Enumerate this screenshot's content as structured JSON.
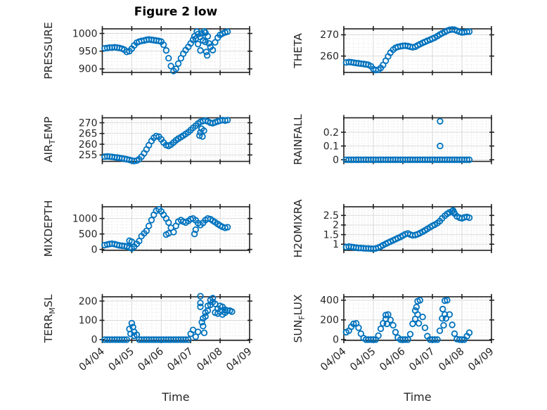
{
  "figure": {
    "title": "Figure 2 low",
    "xlabel": "Time"
  },
  "colors": {
    "marker": "#0072BD",
    "axis_box": "#212121",
    "tick_label": "#262626",
    "grid_major": "#d9d9d9",
    "grid_minor": "#e0e0e0",
    "title": "#000000",
    "background": "#ffffff"
  },
  "time_axis": {
    "xlim": [
      0,
      5
    ],
    "ticks": [
      0,
      1,
      2,
      3,
      4,
      5
    ],
    "tick_labels": [
      "04/04",
      "04/05",
      "04/06",
      "04/07",
      "04/08",
      "04/09"
    ],
    "minor_per_day": 6,
    "x_unit": "days since 04/04 00:00"
  },
  "chart_data": {
    "type": "scatter",
    "title": "Figure 2 low",
    "xlabel": "Time",
    "marker": "open-circle",
    "shared_x": [
      0.08,
      0.17,
      0.25,
      0.33,
      0.42,
      0.5,
      0.58,
      0.67,
      0.75,
      0.83,
      0.92,
      1,
      1.08,
      1.17,
      1.25,
      1.33,
      1.42,
      1.5,
      1.58,
      1.67,
      1.75,
      1.83,
      1.92,
      2,
      2.08,
      2.17,
      2.25,
      2.33,
      2.42,
      2.5,
      2.58,
      2.67,
      2.75,
      2.83,
      2.92,
      3,
      3.08,
      3.17,
      3.25,
      3.33,
      3.42,
      3.5,
      3.58,
      3.67,
      3.75,
      3.83,
      3.92,
      4,
      4.08,
      4.17,
      4.25
    ],
    "subplots": [
      {
        "id": "pressure",
        "ylabel": "PRESSURE",
        "ylabel_parts": [
          {
            "text": "PRESSURE",
            "sub": false
          }
        ],
        "ylim": [
          890,
          1013
        ],
        "yticks": [
          900,
          950,
          1000
        ],
        "ytick_labels": [
          "900",
          "950",
          "1000"
        ],
        "y": [
          958,
          959,
          960,
          960,
          961,
          960,
          959,
          957,
          954,
          948,
          950,
          957,
          966,
          974,
          977,
          979,
          980,
          982,
          983,
          982,
          981,
          980,
          979,
          977,
          968,
          952,
          930,
          908,
          894,
          900,
          915,
          930,
          943,
          953,
          962,
          972,
          982,
          985,
          970,
          952,
          980,
          1002,
          992,
          962,
          953,
          975,
          988,
          996,
          1000,
          1003,
          1005
        ],
        "extra_points": [
          [
            3.46,
            1006
          ],
          [
            3.5,
            976
          ],
          [
            3.53,
            948
          ],
          [
            3.56,
            938
          ],
          [
            3.33,
            990
          ],
          [
            3.37,
            1000
          ],
          [
            3.62,
            972
          ],
          [
            3.13,
            992
          ],
          [
            3.21,
            1005
          ],
          [
            3.25,
            998
          ]
        ]
      },
      {
        "id": "theta",
        "ylabel": "THETA",
        "ylabel_parts": [
          {
            "text": "THETA",
            "sub": false
          }
        ],
        "ylim": [
          252.3,
          272.8
        ],
        "yticks": [
          260,
          270
        ],
        "ytick_labels": [
          "260",
          "270"
        ],
        "y": [
          257.0,
          257.2,
          257.1,
          256.9,
          256.7,
          256.6,
          256.4,
          256.3,
          256.1,
          255.9,
          255.2,
          253.9,
          253.4,
          253.6,
          254.4,
          255.8,
          257.8,
          259.8,
          261.6,
          263.0,
          263.9,
          264.3,
          264.6,
          264.8,
          264.9,
          264.7,
          264.4,
          264.1,
          264.4,
          265.0,
          265.6,
          266.2,
          266.7,
          267.2,
          267.7,
          268.2,
          268.7,
          269.4,
          270.1,
          270.7,
          271.3,
          271.9,
          272.3,
          272.5,
          272.4,
          271.9,
          271.4,
          271.1,
          271.2,
          271.4,
          271.5
        ],
        "extra_points": []
      },
      {
        "id": "air-temp",
        "ylabel": "AIR_TEMP",
        "ylabel_parts": [
          {
            "text": "AIR",
            "sub": false
          },
          {
            "text": "T",
            "sub": true
          },
          {
            "text": "EMP",
            "sub": false
          }
        ],
        "ylim": [
          252,
          272.3
        ],
        "yticks": [
          255,
          260,
          265,
          270
        ],
        "ytick_labels": [
          "255",
          "260",
          "265",
          "270"
        ],
        "y": [
          254.2,
          254.3,
          254.2,
          254.1,
          253.9,
          253.8,
          253.6,
          253.4,
          253.2,
          253.0,
          252.7,
          252.4,
          252.2,
          252.4,
          253.0,
          254.2,
          255.8,
          257.6,
          259.5,
          261.5,
          263.0,
          263.8,
          263.5,
          262.3,
          260.8,
          259.6,
          259.2,
          259.8,
          260.8,
          261.8,
          262.6,
          263.3,
          264.0,
          264.8,
          265.6,
          266.6,
          267.6,
          268.6,
          269.6,
          270.4,
          270.8,
          271.0,
          270.6,
          270.0,
          269.8,
          270.2,
          270.6,
          271.0,
          271.2,
          271.0,
          271.2
        ],
        "extra_points": [
          [
            3.3,
            264.0
          ],
          [
            3.33,
            265.5
          ],
          [
            3.37,
            267.2
          ],
          [
            3.4,
            263.6
          ],
          [
            3.45,
            266.3
          ]
        ]
      },
      {
        "id": "rainfall",
        "ylabel": "RAINFALL",
        "ylabel_parts": [
          {
            "text": "RAINFALL",
            "sub": false
          }
        ],
        "ylim": [
          -0.012,
          0.305
        ],
        "yticks": [
          0,
          0.1,
          0.2
        ],
        "ytick_labels": [
          "0",
          "0.1",
          "0.2"
        ],
        "y": [
          0,
          0,
          0,
          0,
          0,
          0,
          0,
          0,
          0,
          0,
          0,
          0,
          0,
          0,
          0,
          0,
          0,
          0,
          0,
          0,
          0,
          0,
          0,
          0,
          0,
          0,
          0,
          0,
          0,
          0,
          0,
          0,
          0,
          0,
          0,
          0,
          0,
          0,
          0,
          0,
          0,
          0,
          0,
          0,
          0,
          0,
          0,
          0,
          0,
          0,
          0
        ],
        "extra_points": [
          [
            3.26,
            0.28
          ],
          [
            3.26,
            0.1
          ]
        ]
      },
      {
        "id": "mixdepth",
        "ylabel": "MIXDEPTH",
        "ylabel_parts": [
          {
            "text": "MIXDEPTH",
            "sub": false
          }
        ],
        "ylim": [
          -30,
          1380
        ],
        "yticks": [
          0,
          500,
          1000
        ],
        "ytick_labels": [
          "0",
          "500",
          "1000"
        ],
        "y": [
          140,
          160,
          175,
          185,
          170,
          150,
          130,
          120,
          110,
          95,
          60,
          30,
          90,
          180,
          270,
          430,
          520,
          600,
          760,
          950,
          1120,
          1250,
          1300,
          1230,
          1120,
          1000,
          870,
          700,
          560,
          760,
          900,
          950,
          900,
          870,
          920,
          980,
          1000,
          940,
          850,
          790,
          860,
          950,
          1000,
          980,
          930,
          880,
          820,
          770,
          730,
          700,
          720
        ],
        "extra_points": [
          [
            2.17,
            480
          ],
          [
            2.25,
            520
          ],
          [
            3.13,
            500
          ],
          [
            3.17,
            640
          ],
          [
            0.92,
            280
          ],
          [
            1,
            250
          ]
        ]
      },
      {
        "id": "h2omixra",
        "ylabel": "H2OMIXRA",
        "ylabel_parts": [
          {
            "text": "H2OMIXRA",
            "sub": false
          }
        ],
        "ylim": [
          0.68,
          2.95
        ],
        "yticks": [
          1,
          1.5,
          2,
          2.5
        ],
        "ytick_labels": [
          "1",
          "1.5",
          "2",
          "2.5"
        ],
        "y": [
          0.85,
          0.88,
          0.86,
          0.84,
          0.82,
          0.8,
          0.8,
          0.79,
          0.78,
          0.78,
          0.77,
          0.76,
          0.78,
          0.82,
          0.88,
          0.95,
          1.02,
          1.08,
          1.14,
          1.2,
          1.26,
          1.32,
          1.38,
          1.45,
          1.52,
          1.56,
          1.5,
          1.46,
          1.48,
          1.52,
          1.58,
          1.65,
          1.72,
          1.8,
          1.88,
          1.96,
          2.02,
          2.1,
          2.2,
          2.35,
          2.48,
          2.58,
          2.66,
          2.72,
          2.6,
          2.45,
          2.38,
          2.35,
          2.4,
          2.42,
          2.38
        ],
        "extra_points": [
          [
            3.7,
            2.76
          ],
          [
            3.73,
            2.66
          ]
        ]
      },
      {
        "id": "terr-msl",
        "ylabel": "TERR_MSL",
        "ylabel_parts": [
          {
            "text": "TERR",
            "sub": false
          },
          {
            "text": "M",
            "sub": true
          },
          {
            "text": "SL",
            "sub": false
          }
        ],
        "ylim": [
          -4,
          222
        ],
        "yticks": [
          0,
          100,
          200
        ],
        "ytick_labels": [
          "0",
          "100",
          "200"
        ],
        "y": [
          0,
          0,
          0,
          0,
          0,
          0,
          0,
          0,
          0,
          0,
          55,
          85,
          40,
          25,
          0,
          0,
          0,
          0,
          0,
          0,
          0,
          0,
          0,
          0,
          0,
          0,
          0,
          0,
          0,
          0,
          0,
          0,
          0,
          0,
          0,
          30,
          50,
          15,
          40,
          225,
          110,
          140,
          175,
          205,
          215,
          185,
          160,
          145,
          170,
          155,
          150
        ],
        "extra_points": [
          [
            3.33,
            170
          ],
          [
            3.33,
            190
          ],
          [
            3.38,
            90
          ],
          [
            3.42,
            70
          ],
          [
            3.46,
            35
          ],
          [
            3.5,
            120
          ],
          [
            3.58,
            150
          ],
          [
            3.67,
            180
          ],
          [
            3.75,
            195
          ],
          [
            3.83,
            140
          ],
          [
            3.92,
            135
          ],
          [
            4,
            175
          ],
          [
            4.08,
            130
          ],
          [
            4.17,
            140
          ],
          [
            4.33,
            150
          ],
          [
            4.4,
            145
          ],
          [
            0.96,
            30
          ],
          [
            1.04,
            65
          ],
          [
            1.08,
            20
          ]
        ]
      },
      {
        "id": "sun-flux",
        "ylabel": "SUN_FLUX",
        "ylabel_parts": [
          {
            "text": "SUN",
            "sub": false
          },
          {
            "text": "F",
            "sub": true
          },
          {
            "text": "LUX",
            "sub": false
          }
        ],
        "ylim": [
          -8,
          435
        ],
        "yticks": [
          0,
          200,
          400
        ],
        "ytick_labels": [
          "0",
          "200",
          "400"
        ],
        "y": [
          75,
          90,
          130,
          160,
          165,
          120,
          60,
          15,
          0,
          0,
          0,
          0,
          0,
          40,
          110,
          165,
          250,
          255,
          200,
          145,
          75,
          20,
          0,
          0,
          0,
          0,
          55,
          160,
          295,
          390,
          400,
          230,
          120,
          35,
          0,
          0,
          0,
          0,
          90,
          215,
          395,
          400,
          255,
          150,
          60,
          5,
          0,
          0,
          0,
          35,
          70
        ],
        "extra_points": [
          [
            2.46,
            330
          ],
          [
            2.5,
            255
          ],
          [
            2.54,
            165
          ],
          [
            2.42,
            210
          ],
          [
            3.35,
            310
          ],
          [
            3.42,
            255
          ],
          [
            3.46,
            215
          ],
          [
            3.38,
            145
          ],
          [
            1.42,
            210
          ],
          [
            1.46,
            160
          ]
        ]
      }
    ]
  }
}
